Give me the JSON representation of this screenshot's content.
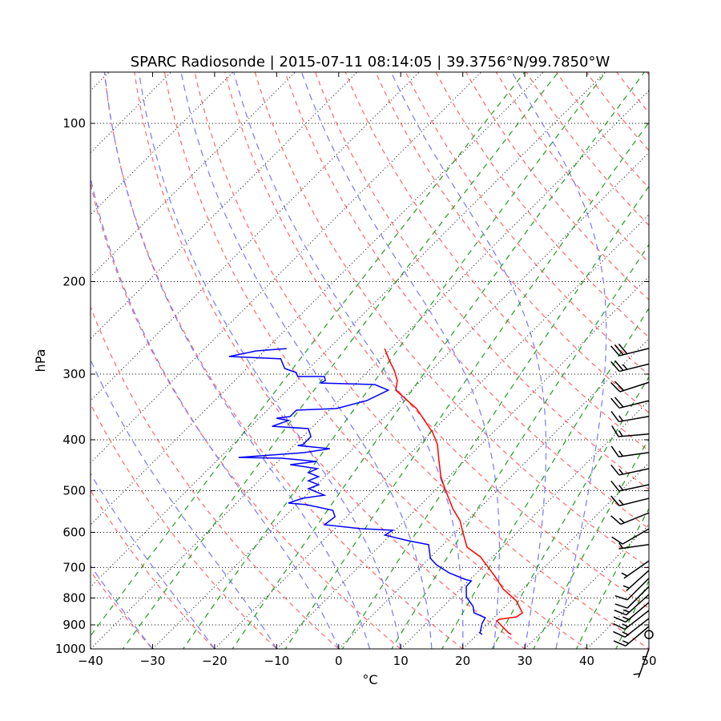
{
  "chart_data": {
    "type": "skew-t",
    "title": "SPARC Radiosonde | 2015-07-11 08:14:05 | 39.3756°N/99.7850°W",
    "xlabel": "°C",
    "ylabel": "hPa",
    "xlim": [
      -40,
      50
    ],
    "ylim": [
      1000,
      80
    ],
    "xticks": [
      "−40",
      "−30",
      "−20",
      "−10",
      "0",
      "10",
      "20",
      "30",
      "40",
      "50"
    ],
    "xtick_values": [
      -40,
      -30,
      -20,
      -10,
      0,
      10,
      20,
      30,
      40,
      50
    ],
    "yticks": [
      "100",
      "200",
      "300",
      "400",
      "500",
      "600",
      "700",
      "800",
      "900",
      "1000"
    ],
    "ytick_values": [
      100,
      200,
      300,
      400,
      500,
      600,
      700,
      800,
      900,
      1000
    ],
    "skew_degrees": 45,
    "colors": {
      "temperature": "#ff0000",
      "dewpoint": "#0000ff",
      "isotherms": "#000000",
      "dry_adiabats": "#ff6666",
      "moist_adiabats": "#7777ff",
      "mixing_ratio": "#229922",
      "barbs": "#000000"
    },
    "temperature": {
      "pressure": [
        268.2,
        282.7,
        294.8,
        308.6,
        321.9,
        348.9,
        387.7,
        408.6,
        430.6,
        470.1,
        495.6,
        541.0,
        570.3,
        601.1,
        640.4,
        668.0,
        729.0,
        768.5,
        810.3,
        853.8,
        869.2,
        878.3,
        884.6,
        932.3,
        938.8
      ],
      "values": [
        -41.0,
        -38.3,
        -36.0,
        -33.8,
        -32.5,
        -26.2,
        -19.7,
        -17.0,
        -14.9,
        -11.3,
        -8.7,
        -4.2,
        -1.1,
        1.3,
        4.3,
        8.0,
        13.6,
        16.8,
        20.9,
        23.8,
        23.5,
        21.1,
        21.0,
        24.8,
        25.5
      ]
    },
    "dewpoint": {
      "pressure": [
        268.2,
        271.0,
        277.7,
        280.6,
        292.7,
        297.9,
        303.2,
        303.2,
        308.6,
        311.9,
        314.0,
        321.9,
        336.8,
        348.9,
        351.3,
        361.3,
        363.9,
        367.7,
        377.0,
        380.9,
        394.5,
        408.6,
        410.1,
        415.9,
        423.2,
        432.2,
        433.7,
        439.8,
        446.1,
        453.9,
        462.0,
        470.1,
        478.6,
        487.1,
        495.6,
        509.8,
        517.0,
        528.0,
        531.7,
        544.8,
        560.4,
        580.3,
        590.5,
        594.7,
        607.4,
        622.5,
        633.5,
        672.6,
        691.8,
        716.5,
        737.0,
        742.2,
        760.7,
        796.2,
        830.0,
        853.8,
        872.4,
        894.0,
        932.3,
        938.8
      ],
      "values": [
        -56.8,
        -61.3,
        -64.8,
        -56.1,
        -53.9,
        -51.4,
        -50.5,
        -46.2,
        -45.4,
        -45.8,
        -36.8,
        -33.7,
        -35.5,
        -39.1,
        -45.3,
        -45.3,
        -47.2,
        -44.9,
        -46.6,
        -40.4,
        -38.7,
        -38.7,
        -39.4,
        -33.7,
        -37.2,
        -47.0,
        -39.9,
        -33.8,
        -37.5,
        -32.5,
        -33.3,
        -31.0,
        -32.0,
        -29.7,
        -30.7,
        -27.1,
        -30.1,
        -31.6,
        -28.4,
        -23.3,
        -21.9,
        -22.3,
        -15.9,
        -10.4,
        -10.9,
        -6.2,
        -2.3,
        0.2,
        2.2,
        5.5,
        9.1,
        10.4,
        10.5,
        12.2,
        14.8,
        16.0,
        18.6,
        19.0,
        20.2,
        20.8
      ]
    },
    "wind_barbs": [
      {
        "pressure": 268,
        "speed_kt": 30,
        "direction_deg": 256
      },
      {
        "pressure": 287,
        "speed_kt": 25,
        "direction_deg": 256
      },
      {
        "pressure": 311,
        "speed_kt": 20,
        "direction_deg": 252
      },
      {
        "pressure": 337,
        "speed_kt": 20,
        "direction_deg": 256
      },
      {
        "pressure": 361,
        "speed_kt": 15,
        "direction_deg": 260
      },
      {
        "pressure": 390,
        "speed_kt": 15,
        "direction_deg": 265
      },
      {
        "pressure": 423,
        "speed_kt": 15,
        "direction_deg": 262
      },
      {
        "pressure": 454,
        "speed_kt": 15,
        "direction_deg": 258
      },
      {
        "pressure": 487,
        "speed_kt": 15,
        "direction_deg": 258
      },
      {
        "pressure": 517,
        "speed_kt": 15,
        "direction_deg": 256
      },
      {
        "pressure": 551,
        "speed_kt": 15,
        "direction_deg": 248
      },
      {
        "pressure": 591,
        "speed_kt": 10,
        "direction_deg": 240
      },
      {
        "pressure": 633,
        "speed_kt": 5,
        "direction_deg": 262
      },
      {
        "pressure": 680,
        "speed_kt": 5,
        "direction_deg": 235
      },
      {
        "pressure": 709,
        "speed_kt": 5,
        "direction_deg": 228
      },
      {
        "pressure": 734,
        "speed_kt": 10,
        "direction_deg": 225
      },
      {
        "pressure": 761,
        "speed_kt": 10,
        "direction_deg": 225
      },
      {
        "pressure": 788,
        "speed_kt": 15,
        "direction_deg": 228
      },
      {
        "pressure": 816,
        "speed_kt": 15,
        "direction_deg": 230
      },
      {
        "pressure": 845,
        "speed_kt": 15,
        "direction_deg": 232
      },
      {
        "pressure": 875,
        "speed_kt": 15,
        "direction_deg": 232
      },
      {
        "pressure": 906,
        "speed_kt": 15,
        "direction_deg": 230
      },
      {
        "pressure": 939,
        "speed_kt": 0,
        "direction_deg": 0
      },
      {
        "pressure": 1000,
        "speed_kt": 5,
        "direction_deg": 200
      }
    ]
  }
}
